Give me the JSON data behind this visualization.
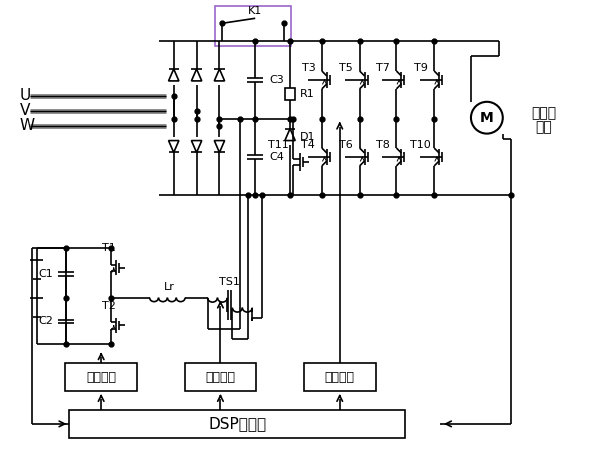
{
  "bg_color": "#ffffff",
  "line_color": "#000000",
  "gray_line": "#888888",
  "uvw_labels": [
    "U",
    "V",
    "W"
  ],
  "motor_label_1": "伺服电",
  "motor_label_2": "动机",
  "iso_label": "隔离驱动",
  "dsp_label": "DSP控制器",
  "figsize": [
    5.91,
    4.73
  ],
  "dpi": 100
}
